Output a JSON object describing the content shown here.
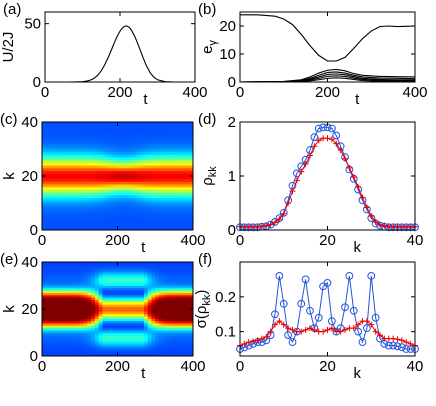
{
  "chart_data": [
    {
      "id": "a",
      "panel_label": "(a)",
      "type": "line",
      "xlabel": "t",
      "ylabel": "U/2J",
      "xlim": [
        0,
        400
      ],
      "ylim": [
        0,
        60
      ],
      "xticks": [
        0,
        200,
        400
      ],
      "yticks": [
        0,
        50
      ],
      "series": [
        {
          "x": [
            0,
            20,
            40,
            60,
            80,
            100,
            110,
            120,
            130,
            140,
            150,
            160,
            170,
            175,
            180,
            185,
            190,
            195,
            200,
            205,
            210,
            215,
            220,
            225,
            230,
            240,
            250,
            260,
            270,
            280,
            290,
            300,
            320,
            340,
            360,
            380,
            400
          ],
          "y": [
            0,
            0,
            0,
            0,
            0.1,
            0.3,
            0.7,
            1.5,
            3.0,
            5.6,
            9.6,
            15.2,
            22.1,
            25.9,
            29.8,
            33.7,
            37.4,
            40.7,
            43.6,
            45.8,
            47.3,
            48.0,
            47.8,
            46.7,
            44.7,
            38.7,
            30.7,
            22.1,
            14.2,
            8.2,
            4.2,
            1.9,
            0.3,
            0.05,
            0,
            0,
            0
          ]
        }
      ]
    },
    {
      "id": "b",
      "panel_label": "(b)",
      "type": "line",
      "xlabel": "t",
      "ylabel": "e_γ",
      "xlim": [
        0,
        400
      ],
      "ylim": [
        0,
        25
      ],
      "xticks": [
        0,
        200,
        400
      ],
      "yticks": [
        0,
        10,
        20
      ],
      "series": [
        {
          "x": [
            0,
            40,
            80,
            100,
            120,
            140,
            160,
            180,
            200,
            220,
            240,
            260,
            280,
            300,
            320,
            340,
            360,
            380,
            400
          ],
          "y": [
            24,
            24,
            23.5,
            22.5,
            20.5,
            17,
            13,
            9.5,
            7.5,
            7.5,
            8.8,
            12,
            15.5,
            18.2,
            19.8,
            20,
            19.8,
            19.9,
            20
          ]
        },
        {
          "x": [
            0,
            100,
            140,
            160,
            180,
            200,
            220,
            240,
            260,
            280,
            320,
            360,
            400
          ],
          "y": [
            0,
            0.2,
            0.8,
            1.8,
            3.2,
            4.2,
            4.5,
            4,
            3,
            2.4,
            2,
            1.9,
            1.8
          ]
        },
        {
          "x": [
            0,
            100,
            140,
            160,
            180,
            200,
            220,
            240,
            260,
            280,
            320,
            360,
            400
          ],
          "y": [
            0,
            0.15,
            0.6,
            1.3,
            2.4,
            3.4,
            3.6,
            3.2,
            2.4,
            1.8,
            1.4,
            1.3,
            1.2
          ]
        },
        {
          "x": [
            0,
            100,
            140,
            160,
            180,
            200,
            220,
            240,
            260,
            280,
            320,
            360,
            400
          ],
          "y": [
            0,
            0.1,
            0.45,
            1,
            1.8,
            2.7,
            2.9,
            2.6,
            1.9,
            1.3,
            0.9,
            0.8,
            0.8
          ]
        },
        {
          "x": [
            0,
            100,
            140,
            160,
            180,
            200,
            220,
            240,
            260,
            280,
            320,
            360,
            400
          ],
          "y": [
            0,
            0.05,
            0.3,
            0.7,
            1.3,
            2,
            2.2,
            2,
            1.4,
            0.9,
            0.6,
            0.5,
            0.5
          ]
        },
        {
          "x": [
            0,
            100,
            140,
            160,
            180,
            200,
            220,
            240,
            260,
            280,
            320,
            360,
            400
          ],
          "y": [
            0,
            0,
            0.2,
            0.4,
            0.8,
            1.3,
            1.5,
            1.3,
            0.9,
            0.5,
            0.3,
            0.3,
            0.3
          ]
        }
      ]
    },
    {
      "id": "c",
      "panel_label": "(c)",
      "type": "heatmap",
      "xlabel": "t",
      "ylabel": "k",
      "xlim": [
        0,
        400
      ],
      "ylim": [
        0,
        40
      ],
      "xticks": [
        0,
        200,
        400
      ],
      "yticks": [
        0,
        20,
        40
      ],
      "colormap": "jet"
    },
    {
      "id": "d",
      "panel_label": "(d)",
      "type": "line",
      "xlabel": "k",
      "ylabel": "ρ_kk",
      "xlim": [
        0,
        40
      ],
      "ylim": [
        0,
        2
      ],
      "xticks": [
        0,
        20,
        40
      ],
      "yticks": [
        0,
        1,
        2
      ],
      "series": [
        {
          "marker": "circle",
          "color": "#2255dd",
          "x": [
            0,
            1,
            2,
            3,
            4,
            5,
            6,
            7,
            8,
            9,
            10,
            11,
            12,
            13,
            14,
            15,
            16,
            17,
            18,
            19,
            20,
            21,
            22,
            23,
            24,
            25,
            26,
            27,
            28,
            29,
            30,
            31,
            32,
            33,
            34,
            35,
            36,
            37,
            38,
            39,
            40
          ],
          "y": [
            0.05,
            0.05,
            0.05,
            0.05,
            0.05,
            0.06,
            0.07,
            0.1,
            0.15,
            0.22,
            0.32,
            0.55,
            0.82,
            1.05,
            1.18,
            1.3,
            1.48,
            1.72,
            1.88,
            1.9,
            1.9,
            1.88,
            1.75,
            1.55,
            1.35,
            1.12,
            0.95,
            0.75,
            0.55,
            0.38,
            0.22,
            0.12,
            0.08,
            0.06,
            0.05,
            0.05,
            0.05,
            0.05,
            0.05,
            0.05,
            0.05
          ]
        },
        {
          "marker": "plus",
          "color": "#ee0000",
          "x": [
            0,
            1,
            2,
            3,
            4,
            5,
            6,
            7,
            8,
            9,
            10,
            11,
            12,
            13,
            14,
            15,
            16,
            17,
            18,
            19,
            20,
            21,
            22,
            23,
            24,
            25,
            26,
            27,
            28,
            29,
            30,
            31,
            32,
            33,
            34,
            35,
            36,
            37,
            38,
            39,
            40
          ],
          "y": [
            0.06,
            0.06,
            0.06,
            0.06,
            0.06,
            0.07,
            0.08,
            0.1,
            0.14,
            0.2,
            0.3,
            0.5,
            0.72,
            0.92,
            1.08,
            1.22,
            1.38,
            1.55,
            1.66,
            1.7,
            1.7,
            1.68,
            1.6,
            1.48,
            1.32,
            1.15,
            0.98,
            0.8,
            0.6,
            0.42,
            0.26,
            0.15,
            0.1,
            0.08,
            0.07,
            0.06,
            0.06,
            0.06,
            0.06,
            0.06,
            0.06
          ]
        }
      ]
    },
    {
      "id": "e",
      "panel_label": "(e)",
      "type": "heatmap",
      "xlabel": "t",
      "ylabel": "k",
      "xlim": [
        0,
        400
      ],
      "ylim": [
        0,
        40
      ],
      "xticks": [
        0,
        200,
        400
      ],
      "yticks": [
        0,
        20,
        40
      ],
      "colormap": "jet"
    },
    {
      "id": "f",
      "panel_label": "(f)",
      "type": "line",
      "xlabel": "k",
      "ylabel": "σ(ρ_kk)",
      "xlim": [
        0,
        40
      ],
      "ylim": [
        0.03,
        0.3
      ],
      "xticks": [
        0,
        20,
        40
      ],
      "yticks": [
        0.1,
        0.2
      ],
      "series": [
        {
          "marker": "circle",
          "color": "#2255dd",
          "x": [
            0,
            1,
            2,
            3,
            4,
            5,
            6,
            7,
            8,
            9,
            10,
            11,
            12,
            13,
            14,
            15,
            16,
            17,
            18,
            19,
            20,
            21,
            22,
            23,
            24,
            25,
            26,
            27,
            28,
            29,
            30,
            31,
            32,
            33,
            34,
            35,
            36,
            37,
            38,
            39,
            40
          ],
          "y": [
            0.05,
            0.055,
            0.06,
            0.065,
            0.07,
            0.07,
            0.075,
            0.09,
            0.15,
            0.26,
            0.18,
            0.09,
            0.07,
            0.1,
            0.18,
            0.25,
            0.16,
            0.11,
            0.14,
            0.23,
            0.24,
            0.13,
            0.1,
            0.11,
            0.17,
            0.26,
            0.16,
            0.1,
            0.07,
            0.11,
            0.26,
            0.14,
            0.08,
            0.065,
            0.06,
            0.06,
            0.058,
            0.055,
            0.05,
            0.05,
            0.05
          ]
        },
        {
          "marker": "plus",
          "color": "#ee0000",
          "x": [
            0,
            1,
            2,
            3,
            4,
            5,
            6,
            7,
            8,
            9,
            10,
            11,
            12,
            13,
            14,
            15,
            16,
            17,
            18,
            19,
            20,
            21,
            22,
            23,
            24,
            25,
            26,
            27,
            28,
            29,
            30,
            31,
            32,
            33,
            34,
            35,
            36,
            37,
            38,
            39,
            40
          ],
          "y": [
            0.06,
            0.065,
            0.07,
            0.072,
            0.075,
            0.08,
            0.085,
            0.1,
            0.12,
            0.13,
            0.12,
            0.11,
            0.105,
            0.1,
            0.1,
            0.105,
            0.11,
            0.105,
            0.1,
            0.1,
            0.105,
            0.11,
            0.1,
            0.1,
            0.105,
            0.11,
            0.11,
            0.12,
            0.13,
            0.13,
            0.12,
            0.1,
            0.09,
            0.08,
            0.08,
            0.08,
            0.078,
            0.075,
            0.07,
            0.065,
            0.06
          ]
        }
      ]
    }
  ]
}
